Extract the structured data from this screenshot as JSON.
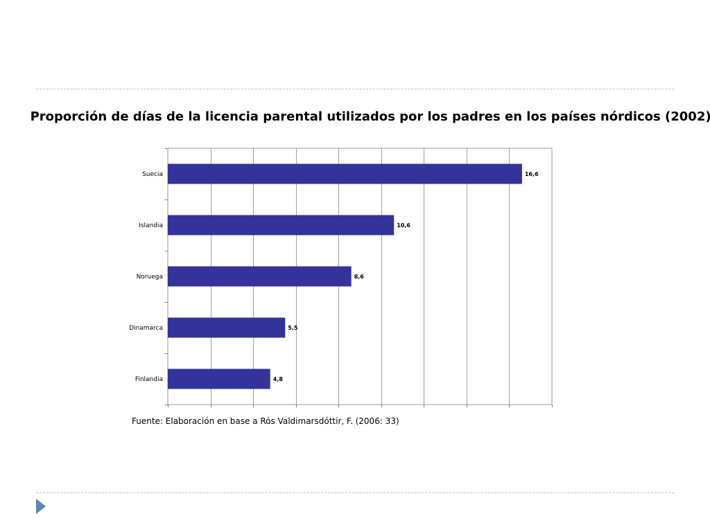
{
  "slide": {
    "title": "Proporción de días de la licencia parental utilizados por los padres en los países nórdicos (2002).",
    "source": "Fuente: Elaboración en base a Rós Valdimarsdóttir, F. (2006: 33)"
  },
  "colors": {
    "bar": "#333399",
    "rule": "#a9bfd3",
    "nav_arrow": "#5b86b5"
  },
  "icons": {
    "nav": "play-triangle-icon"
  },
  "chart_data": {
    "type": "bar",
    "orientation": "horizontal",
    "categories": [
      "Suecia",
      "Islandia",
      "Noruega",
      "Dinamarca",
      "Finlandia"
    ],
    "values": [
      16.6,
      10.6,
      8.6,
      5.5,
      4.8
    ],
    "data_labels": [
      "16,6",
      "10,6",
      "8,6",
      "5,5",
      "4,8"
    ],
    "xlim": [
      0,
      18
    ],
    "grid": true
  }
}
